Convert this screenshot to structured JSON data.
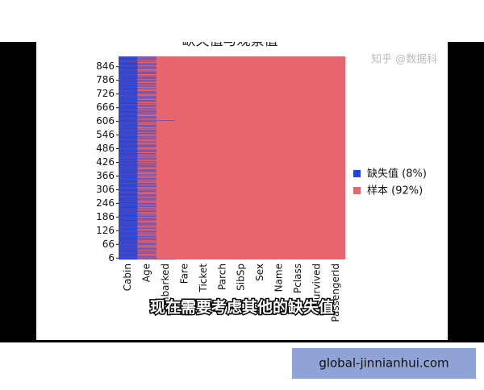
{
  "chart_data": {
    "type": "heatmap",
    "title": "缺失值与观察值",
    "columns": [
      "Cabin",
      "Age",
      "Embarked",
      "Fare",
      "Ticket",
      "Parch",
      "SibSp",
      "Sex",
      "Name",
      "Pclass",
      "Survived",
      "PassengerId"
    ],
    "missing_counts": [
      687,
      177,
      2,
      0,
      0,
      0,
      0,
      0,
      0,
      0,
      0,
      0
    ],
    "ylim": [
      0,
      891
    ],
    "yticks": [
      6,
      66,
      126,
      186,
      246,
      306,
      366,
      426,
      486,
      546,
      606,
      666,
      726,
      786,
      846
    ],
    "series": [
      {
        "name": "缺失值 (8%)",
        "color": "#2244d8"
      },
      {
        "name": "样本 (92%)",
        "color": "#e8656d"
      }
    ]
  },
  "subtitle": "现在需要考虑其他的缺失值",
  "watermark": "知乎 @数据科",
  "footer_link": "global-jinnianhui.com"
}
